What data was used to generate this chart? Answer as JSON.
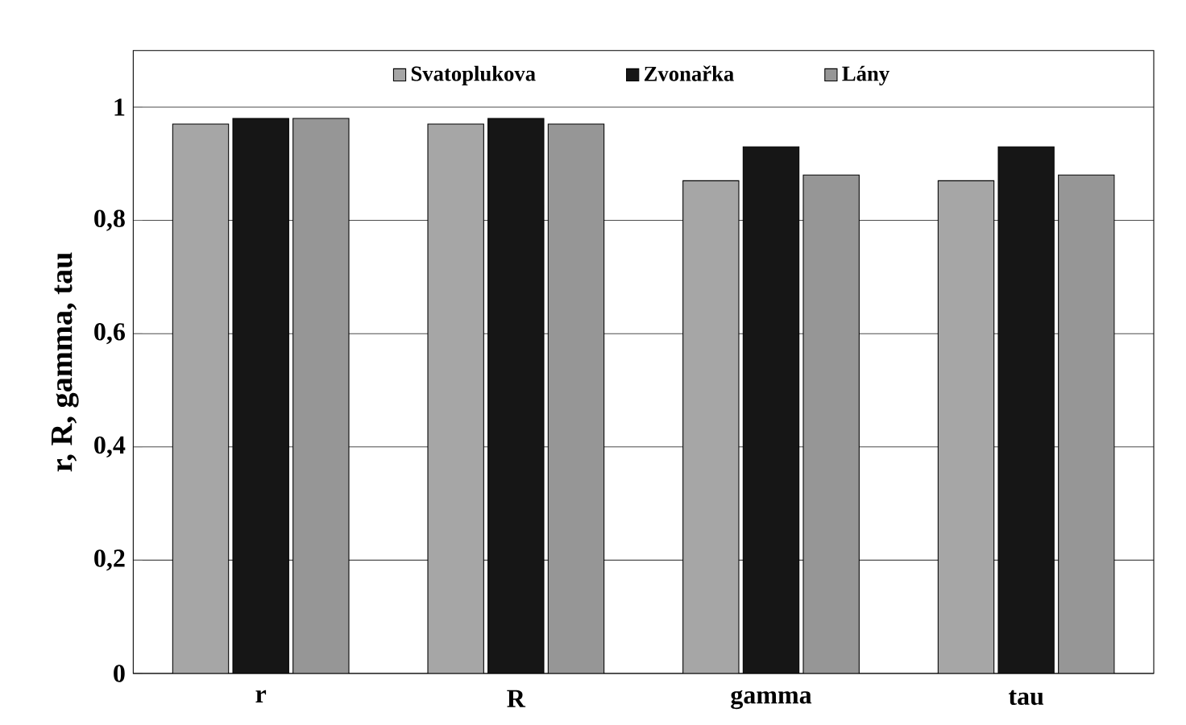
{
  "chart_data": {
    "type": "bar",
    "ylabel": "r, R, gamma, tau",
    "categories": [
      "r",
      "R",
      "gamma",
      "tau"
    ],
    "series": [
      {
        "name": "Svatoplukova",
        "color": "#a6a6a6",
        "values": [
          0.97,
          0.97,
          0.87,
          0.87
        ]
      },
      {
        "name": "Zvonařka",
        "color": "#161616",
        "values": [
          0.98,
          0.98,
          0.93,
          0.93
        ]
      },
      {
        "name": "Lány",
        "color": "#969696",
        "values": [
          0.98,
          0.97,
          0.88,
          0.88
        ]
      }
    ],
    "ylim": [
      0,
      1.1
    ],
    "yticks": [
      0,
      {
        "value": 0.2,
        "label": "0,2"
      },
      {
        "value": 0.4,
        "label": "0,4"
      },
      {
        "value": 0.6,
        "label": "0,6"
      },
      {
        "value": 0.8,
        "label": "0,8"
      },
      1
    ],
    "grid": "y",
    "legend": "top"
  }
}
